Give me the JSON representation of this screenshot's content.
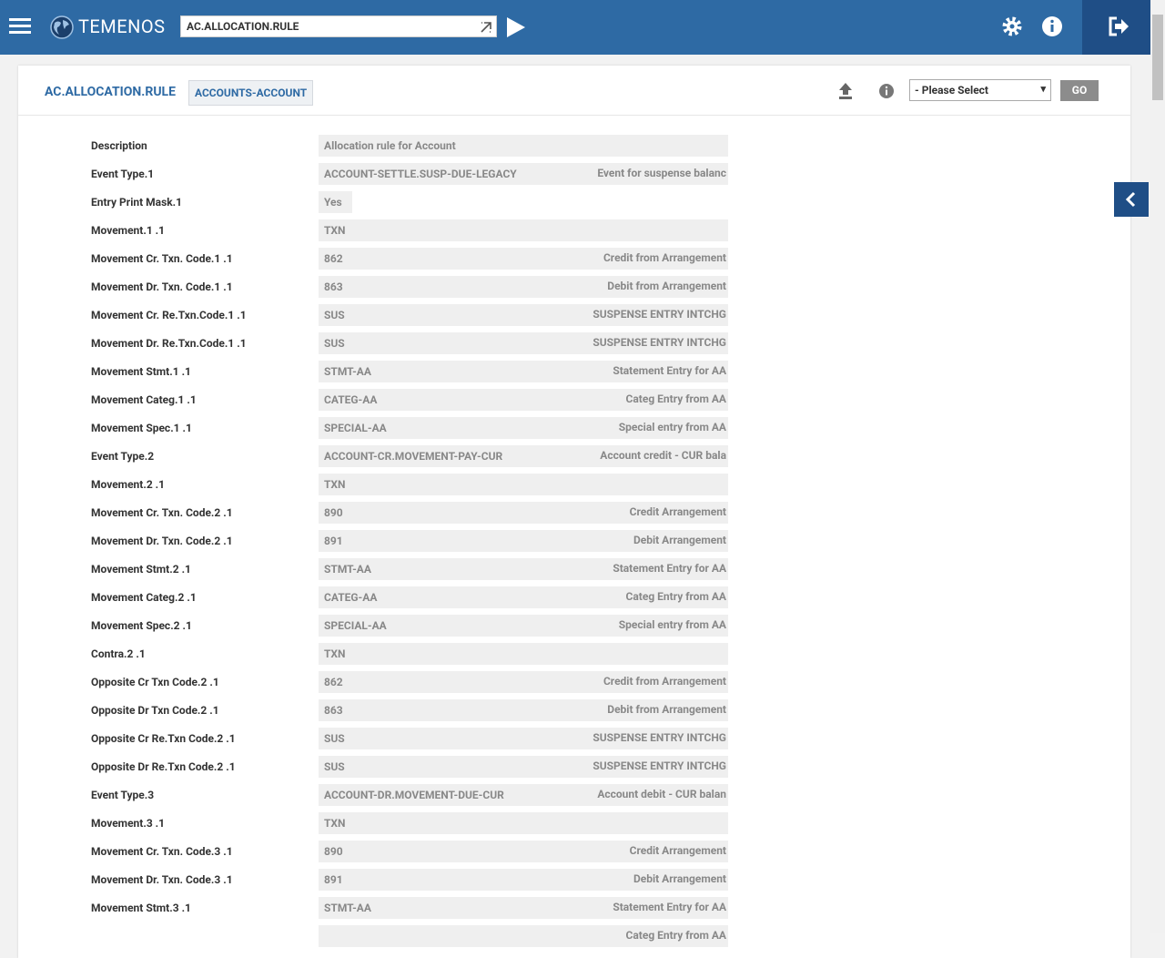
{
  "header": {
    "brand": "TEMENOS",
    "search": "AC.ALLOCATION.RULE"
  },
  "panel": {
    "title": "AC.ALLOCATION.RULE",
    "tab": "ACCOUNTS-ACCOUNT",
    "select": "- Please Select",
    "button": "GO"
  },
  "rows": [
    {
      "label": "Description",
      "value": "Allocation rule for Account"
    },
    {
      "label": "Event Type.1",
      "value": "ACCOUNT-SETTLE.SUSP-DUE-LEGACY",
      "description": "Event for suspense balanc"
    },
    {
      "label": "Entry Print Mask.1",
      "value": "Yes"
    },
    {
      "label": "Movement.1 .1",
      "value": "TXN"
    },
    {
      "label": "Movement Cr. Txn. Code.1 .1",
      "value": "862",
      "description": "Credit from Arrangement"
    },
    {
      "label": "Movement Dr. Txn. Code.1 .1",
      "value": "863",
      "description": "Debit from Arrangement"
    },
    {
      "label": "Movement Cr. Re.Txn.Code.1 .1",
      "value": "SUS",
      "description": "SUSPENSE ENTRY INTCHG"
    },
    {
      "label": "Movement Dr. Re.Txn.Code.1 .1",
      "value": "SUS",
      "description": "SUSPENSE ENTRY INTCHG"
    },
    {
      "label": "Movement Stmt.1 .1",
      "value": "STMT-AA",
      "description": "Statement Entry for AA"
    },
    {
      "label": "Movement Categ.1 .1",
      "value": "CATEG-AA",
      "description": "Categ Entry from AA"
    },
    {
      "label": "Movement Spec.1 .1",
      "value": "SPECIAL-AA",
      "description": "Special entry from AA"
    },
    {
      "label": "Event Type.2",
      "value": "ACCOUNT-CR.MOVEMENT-PAY-CUR",
      "description": "Account credit - CUR bala"
    },
    {
      "label": "Movement.2 .1",
      "value": "TXN"
    },
    {
      "label": "Movement Cr. Txn. Code.2 .1",
      "value": "890",
      "description": "Credit Arrangement"
    },
    {
      "label": "Movement Dr. Txn. Code.2 .1",
      "value": "891",
      "description": "Debit Arrangement"
    },
    {
      "label": "Movement Stmt.2 .1",
      "value": "STMT-AA",
      "description": "Statement Entry for AA"
    },
    {
      "label": "Movement Categ.2 .1",
      "value": "CATEG-AA",
      "description": "Categ Entry from AA"
    },
    {
      "label": "Movement Spec.2 .1",
      "value": "SPECIAL-AA",
      "description": "Special entry from AA"
    },
    {
      "label": "Contra.2 .1",
      "value": "TXN"
    },
    {
      "label": "Opposite Cr Txn Code.2 .1",
      "value": "862",
      "description": "Credit from Arrangement"
    },
    {
      "label": "Opposite Dr Txn Code.2 .1",
      "value": "863",
      "description": "Debit from Arrangement"
    },
    {
      "label": "Opposite Cr Re.Txn Code.2 .1",
      "value": "SUS",
      "description": "SUSPENSE ENTRY INTCHG"
    },
    {
      "label": "Opposite Dr Re.Txn Code.2 .1",
      "value": "SUS",
      "description": "SUSPENSE ENTRY INTCHG"
    },
    {
      "label": "Event Type.3",
      "value": "ACCOUNT-DR.MOVEMENT-DUE-CUR",
      "description": "Account debit - CUR balan"
    },
    {
      "label": "Movement.3 .1",
      "value": "TXN"
    },
    {
      "label": "Movement Cr. Txn. Code.3 .1",
      "value": "890",
      "description": "Credit Arrangement"
    },
    {
      "label": "Movement Dr. Txn. Code.3 .1",
      "value": "891",
      "description": "Debit Arrangement"
    },
    {
      "label": "Movement Stmt.3 .1",
      "value": "STMT-AA",
      "description": "Statement Entry for AA"
    },
    {
      "description": "Categ Entry from AA"
    }
  ]
}
